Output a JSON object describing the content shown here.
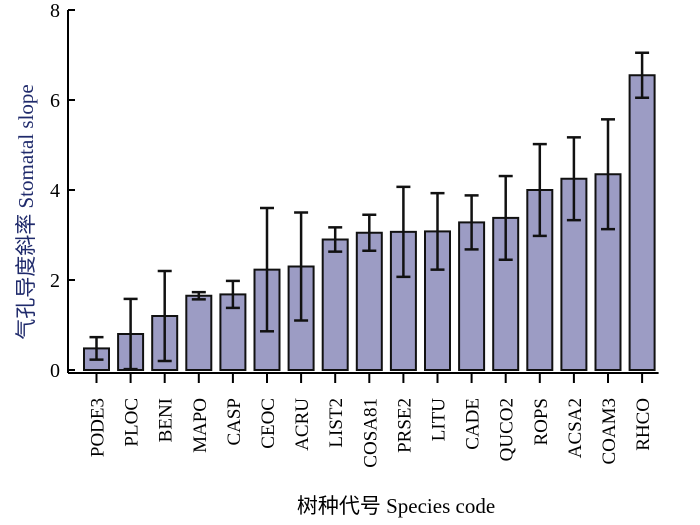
{
  "chart_data": {
    "type": "bar",
    "xlabel": "树种代号 Species code",
    "ylabel": "气孔导度斜率 Stomatal slope",
    "ylim": [
      0,
      8
    ],
    "yticks": [
      0,
      2,
      4,
      6,
      8
    ],
    "grid": false,
    "categories": [
      "PODE3",
      "PLOC",
      "BENI",
      "MAPO",
      "CASP",
      "CEOC",
      "ACRU",
      "LIST2",
      "COSA81",
      "PRSE2",
      "LITU",
      "CADE",
      "QUCO2",
      "ROPS",
      "ACSA2",
      "COAM3",
      "RHCO"
    ],
    "values": [
      0.48,
      0.8,
      1.2,
      1.65,
      1.68,
      2.23,
      2.3,
      2.9,
      3.05,
      3.07,
      3.08,
      3.28,
      3.38,
      4.0,
      4.25,
      4.35,
      6.55
    ],
    "error": [
      0.25,
      0.78,
      1.0,
      0.08,
      0.3,
      1.37,
      1.2,
      0.27,
      0.4,
      1.0,
      0.85,
      0.6,
      0.93,
      1.02,
      0.92,
      1.22,
      0.5
    ],
    "colors": {
      "bar": "#9c9cc4",
      "bar_edge": "#111111",
      "axis": "#000000"
    }
  }
}
